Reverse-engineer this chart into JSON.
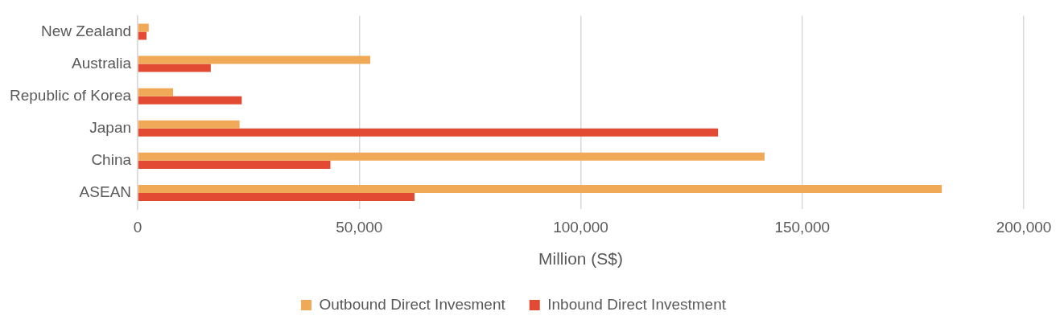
{
  "chart_data": {
    "type": "bar",
    "orientation": "horizontal",
    "xlabel": "Million (S$)",
    "categories": [
      "New Zealand",
      "Australia",
      "Republic of Korea",
      "Japan",
      "China",
      "ASEAN"
    ],
    "series": [
      {
        "name": "Outbound Direct Invesment",
        "color": "#f0a957",
        "values": [
          2500,
          52500,
          8000,
          23000,
          141500,
          181500
        ]
      },
      {
        "name": "Inbound Direct Investment",
        "color": "#e34a33",
        "values": [
          2000,
          16500,
          23500,
          131000,
          43500,
          62500
        ]
      }
    ],
    "xlim": [
      0,
      200000
    ],
    "xticks": [
      {
        "value": 0,
        "label": "0"
      },
      {
        "value": 50000,
        "label": "50,000"
      },
      {
        "value": 100000,
        "label": "100,000"
      },
      {
        "value": 150000,
        "label": "150,000"
      },
      {
        "value": 200000,
        "label": "200,000"
      }
    ],
    "grid": "x",
    "legend": "bottom"
  }
}
